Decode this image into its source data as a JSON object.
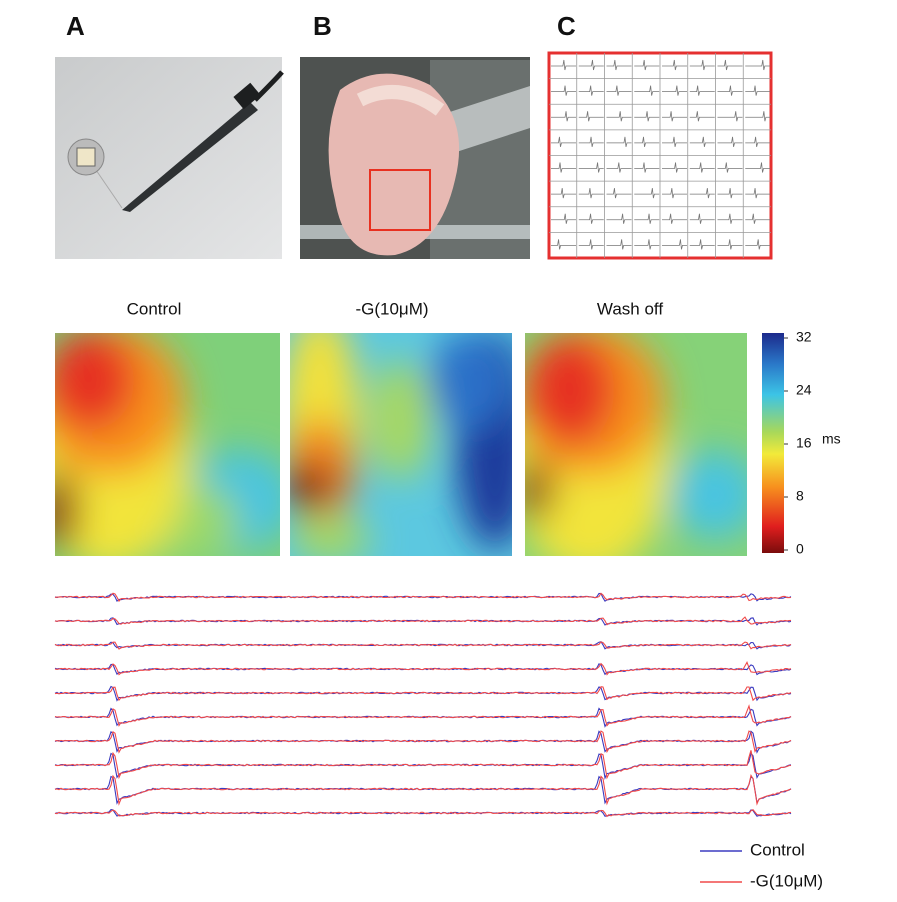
{
  "panels": [
    {
      "label": "A"
    },
    {
      "label": "B"
    },
    {
      "label": "C"
    }
  ],
  "maps": {
    "titles": [
      "Control",
      "-G(10μM)",
      "Wash off"
    ],
    "colorbar": {
      "lim": [
        0,
        32
      ],
      "ticks": [
        0,
        8,
        16,
        24,
        32
      ],
      "unit": "ms"
    }
  },
  "legend": [
    {
      "name": "Control",
      "color": "#3b3bc0"
    },
    {
      "name": "-G(10μM)",
      "color": "#f04a4a"
    }
  ]
}
